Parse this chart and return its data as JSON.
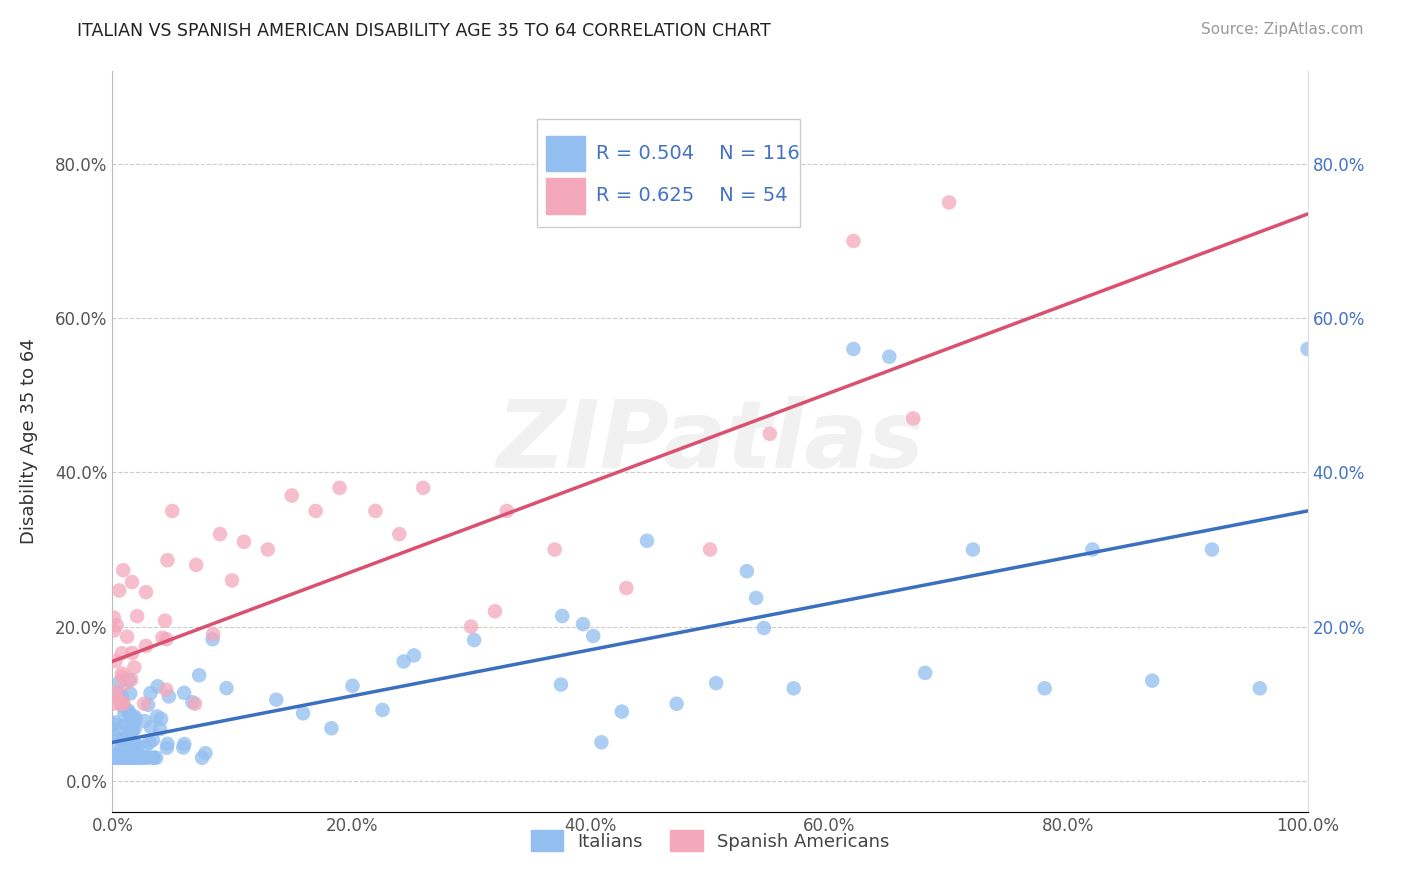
{
  "title": "ITALIAN VS SPANISH AMERICAN DISABILITY AGE 35 TO 64 CORRELATION CHART",
  "source": "Source: ZipAtlas.com",
  "ylabel": "Disability Age 35 to 64",
  "r1": 0.504,
  "n1": 116,
  "r2": 0.625,
  "n2": 54,
  "blue_scatter_color": "#92BEF0",
  "pink_scatter_color": "#F4A8BC",
  "blue_line_color": "#3B6FBF",
  "pink_line_color": "#D95070",
  "legend_label1": "Italians",
  "legend_label2": "Spanish Americans",
  "watermark_text": "ZIPatlas",
  "background": "#FFFFFF",
  "grid_color": "#CCCCCC",
  "blue_intercept": 0.05,
  "blue_slope": 0.3,
  "pink_intercept": 0.155,
  "pink_slope": 0.58
}
